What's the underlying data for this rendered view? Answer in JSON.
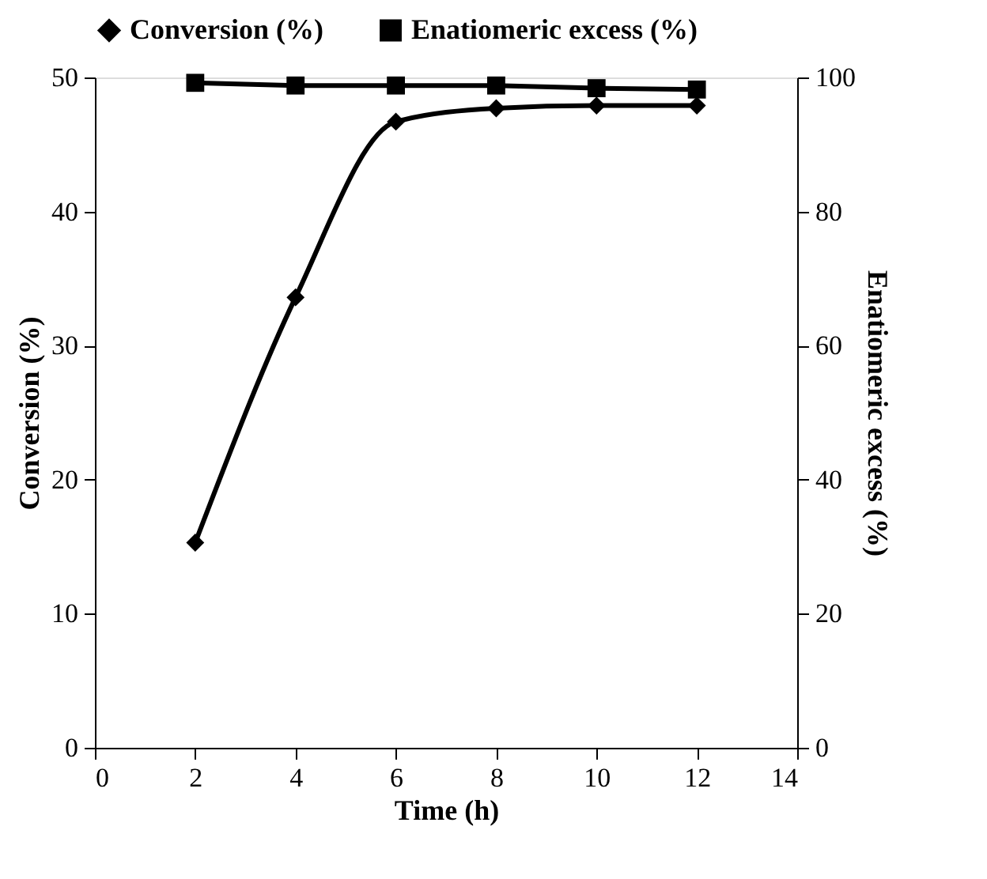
{
  "chart_data": {
    "type": "line",
    "xlabel": "Time (h)",
    "ylabel": "Conversion (%)",
    "y2label": "Enatiomeric excess (%)",
    "x": [
      2,
      4,
      6,
      8,
      10,
      12
    ],
    "series": [
      {
        "name": "Conversion (%)",
        "color": "#000000",
        "marker": "diamond",
        "values": [
          15.3,
          33.6,
          46.7,
          47.7,
          47.9,
          47.9
        ]
      },
      {
        "name": "Enatiomeric excess (%)",
        "color": "#000000",
        "marker": "square",
        "axis": "y2",
        "values": [
          99.2,
          98.8,
          98.8,
          98.8,
          98.4,
          98.2
        ]
      }
    ],
    "xlim": [
      0,
      14
    ],
    "xticks": [
      0,
      2,
      4,
      6,
      8,
      10,
      12,
      14
    ],
    "ylim": [
      0,
      50
    ],
    "yticks": [
      0,
      10,
      20,
      30,
      40,
      50
    ],
    "y2lim": [
      0,
      100
    ],
    "y2ticks": [
      0,
      20,
      40,
      60,
      80,
      100
    ],
    "grid": false,
    "legend": "top",
    "line_style": "solid"
  }
}
